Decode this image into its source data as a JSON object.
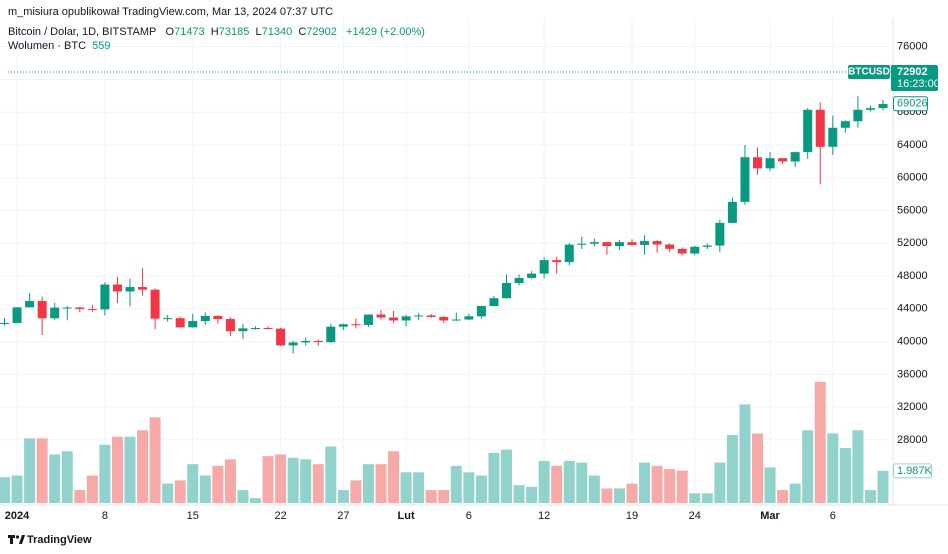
{
  "header": "m_misiura opublikował TradingView.com, Mar 13, 2024 07:37 UTC",
  "footer": "TradingView",
  "chart_data": {
    "type": "candlestick",
    "symbol_title": "Bitcoin / Dolar, 1D, BITSTAMP",
    "ohlc_letters": [
      "O",
      "H",
      "L",
      "C"
    ],
    "ohlc_values": [
      71473,
      73185,
      71340,
      72902
    ],
    "change": "+1429 (+2.00%)",
    "volume_title": "Wolumen · BTC",
    "volume_legend_value": 559,
    "categories": [
      null,
      "2024",
      null,
      null,
      null,
      null,
      null,
      null,
      "8",
      null,
      null,
      null,
      null,
      null,
      null,
      "15",
      null,
      null,
      null,
      null,
      null,
      null,
      "22",
      null,
      null,
      null,
      null,
      "27",
      null,
      null,
      null,
      null,
      "Lut",
      null,
      null,
      null,
      null,
      "6",
      null,
      null,
      null,
      null,
      null,
      "12",
      null,
      null,
      null,
      null,
      null,
      null,
      "19",
      null,
      null,
      null,
      null,
      "24",
      null,
      null,
      null,
      null,
      null,
      "Mar",
      null,
      null,
      null,
      null,
      "6",
      null,
      null,
      null,
      null
    ],
    "open": [
      42150,
      42280,
      44180,
      44950,
      42850,
      44150,
      44160,
      43970,
      43930,
      46970,
      46120,
      46660,
      46340,
      42800,
      42860,
      41740,
      42510,
      43140,
      42760,
      41270,
      41620,
      41660,
      41580,
      39540,
      39900,
      40080,
      39940,
      41820,
      42120,
      42030,
      43300,
      42940,
      42580,
      43080,
      43190,
      43010,
      42580,
      42700,
      43090,
      44340,
      45300,
      47150,
      47770,
      48300,
      49950,
      49700,
      51830,
      51950,
      52140,
      51660,
      52140,
      51800,
      52270,
      51850,
      51320,
      50750,
      51570,
      51730,
      54490,
      57060,
      62500,
      61150,
      62390,
      61990,
      63130,
      68300,
      63780,
      66100,
      66900,
      68300,
      68500
    ],
    "high": [
      42900,
      44200,
      45900,
      45500,
      44750,
      44350,
      44250,
      44500,
      47250,
      47900,
      47700,
      48950,
      46500,
      43250,
      43070,
      43400,
      43570,
      43190,
      42940,
      42200,
      41870,
      41870,
      41700,
      40100,
      40500,
      40270,
      42200,
      42200,
      42800,
      43300,
      43880,
      43740,
      43280,
      43480,
      43380,
      43110,
      43530,
      43400,
      44390,
      45600,
      48200,
      48200,
      48600,
      50300,
      50370,
      52050,
      52820,
      52600,
      52200,
      52400,
      52500,
      52980,
      52380,
      52000,
      51500,
      51700,
      51950,
      54900,
      57600,
      64000,
      63700,
      63150,
      62400,
      63200,
      68500,
      69200,
      67600,
      67000,
      70000,
      68800,
      69500
    ],
    "low": [
      41950,
      42200,
      44200,
      40800,
      42650,
      42600,
      43600,
      43600,
      43200,
      44700,
      44300,
      45600,
      41500,
      42450,
      41720,
      41720,
      42050,
      42200,
      40700,
      40300,
      41450,
      41500,
      39460,
      38550,
      39500,
      39500,
      39830,
      41400,
      41630,
      41800,
      42700,
      42300,
      41880,
      42600,
      42890,
      42260,
      42500,
      42600,
      42800,
      44330,
      45250,
      46850,
      47700,
      47700,
      48300,
      49300,
      51300,
      51600,
      50600,
      51200,
      51700,
      50600,
      50850,
      50900,
      50550,
      50600,
      51300,
      50900,
      54450,
      56700,
      60400,
      60800,
      61700,
      61300,
      62300,
      59200,
      62800,
      65500,
      66100,
      68100,
      68200
    ],
    "close": [
      42280,
      44180,
      44950,
      42850,
      44150,
      44160,
      43970,
      43930,
      46970,
      46120,
      46660,
      46340,
      42800,
      42860,
      41740,
      42510,
      43140,
      42760,
      41270,
      41620,
      41660,
      41580,
      39540,
      39900,
      40080,
      39940,
      41820,
      42120,
      42030,
      43300,
      42940,
      42580,
      43080,
      43190,
      43010,
      42580,
      42700,
      43090,
      44340,
      45300,
      47150,
      47770,
      48300,
      49950,
      49700,
      51830,
      51950,
      52140,
      51660,
      52140,
      51800,
      52270,
      51850,
      51320,
      50750,
      51570,
      51730,
      54490,
      57060,
      62500,
      61150,
      62390,
      61990,
      63130,
      68300,
      63780,
      66100,
      66900,
      68300,
      68500,
      69000
    ],
    "volume": [
      1600,
      1700,
      4000,
      4000,
      3000,
      3200,
      800,
      1700,
      3600,
      4100,
      4100,
      4500,
      5300,
      1200,
      1400,
      2400,
      1700,
      2300,
      2700,
      800,
      300,
      2900,
      3000,
      2800,
      2700,
      2400,
      3500,
      800,
      1400,
      2400,
      2400,
      3200,
      1900,
      1900,
      800,
      800,
      2300,
      1900,
      1700,
      3100,
      3300,
      1100,
      1000,
      2600,
      2300,
      2600,
      2500,
      1700,
      900,
      900,
      1200,
      2500,
      2300,
      2100,
      2000,
      600,
      600,
      2500,
      4200,
      6100,
      4300,
      2200,
      800,
      1200,
      4500,
      7500,
      4300,
      3400,
      4500,
      800,
      1987
    ],
    "volume_last_label": "1.987K",
    "ylim": [
      20300,
      79500
    ],
    "volume_ylim": [
      0,
      30000
    ],
    "yticks": [
      28000,
      32000,
      36000,
      40000,
      44000,
      48000,
      52000,
      56000,
      60000,
      64000,
      68000,
      72000,
      76000
    ],
    "grid": true,
    "up_color": "#089981",
    "down_color": "#f23645",
    "volume_up_color": "#92d2cc",
    "volume_down_color": "#f7a9a7",
    "last_price": 72902,
    "last_price_symbol": "BTCUSD",
    "countdown": "16:23:00",
    "price_marker": 69026
  }
}
